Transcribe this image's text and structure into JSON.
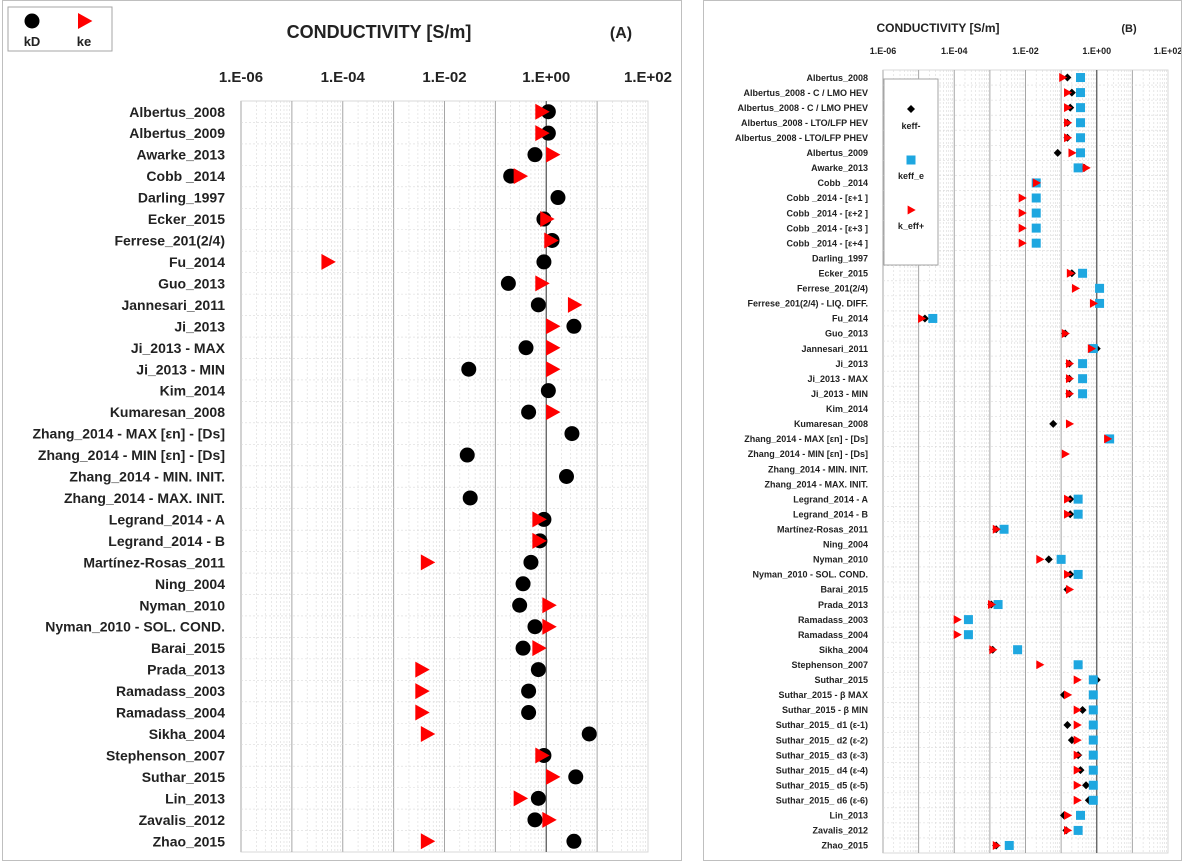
{
  "chart_data": [
    {
      "type": "scatter",
      "title": "CONDUCTIVITY [S/m]",
      "panel_label": "(A)",
      "x_scale": "log",
      "xlim": [
        1e-06,
        100
      ],
      "x_ticks": [
        "1.E-06",
        "1.E-04",
        "1.E-02",
        "1.E+00",
        "1.E+02"
      ],
      "grid": true,
      "legend_position": "top-left",
      "legend": [
        {
          "key": "kD",
          "label": "kD",
          "marker": "circle",
          "color": "#000000"
        },
        {
          "key": "ke",
          "label": "ke",
          "marker": "triangle",
          "color": "#ff0000"
        }
      ],
      "categories": [
        "Albertus_2008",
        "Albertus_2009",
        "Awarke_2013",
        "Cobb _2014",
        "Darling_1997",
        "Ecker_2015",
        "Ferrese_201(2/4)",
        "Fu_2014",
        "Guo_2013",
        "Jannesari_2011",
        "Ji_2013",
        "Ji_2013 - MAX",
        "Ji_2013 - MIN",
        "Kim_2014",
        "Kumaresan_2008",
        "Zhang_2014 - MAX [εn] - [Ds]",
        "Zhang_2014 - MIN [εn] - [Ds]",
        "Zhang_2014 - MIN. INIT.",
        "Zhang_2014 - MAX. INIT.",
        "Legrand_2014 - A",
        "Legrand_2014 - B",
        "Martínez-Rosas_2011",
        "Ning_2004",
        "Nyman_2010",
        "Nyman_2010 - SOL. COND.",
        "Barai_2015",
        "Prada_2013",
        "Ramadass_2003",
        "Ramadass_2004",
        "Sikha_2004",
        "Stephenson_2007",
        "Suthar_2015",
        "Lin_2013",
        "Zavalis_2012",
        "Zhao_2015"
      ],
      "series": [
        {
          "name": "kD",
          "values": [
            1.1,
            1.1,
            0.6,
            0.2,
            1.7,
            0.9,
            1.3,
            0.9,
            0.18,
            0.7,
            3.5,
            0.4,
            0.03,
            1.1,
            0.45,
            3.2,
            0.028,
            2.5,
            0.032,
            0.9,
            0.75,
            0.5,
            0.35,
            0.3,
            0.6,
            0.35,
            0.7,
            0.45,
            0.45,
            7.0,
            0.9,
            3.8,
            0.7,
            0.6,
            3.5
          ]
        },
        {
          "name": "ke",
          "values": [
            0.8,
            0.8,
            1.3,
            0.3,
            null,
            1.0,
            1.2,
            5e-05,
            0.8,
            3.5,
            1.3,
            1.3,
            1.3,
            null,
            1.3,
            null,
            null,
            null,
            null,
            0.7,
            0.7,
            0.0045,
            null,
            1.1,
            1.1,
            0.7,
            0.0035,
            0.0035,
            0.0035,
            0.0045,
            0.8,
            1.3,
            0.3,
            1.1,
            0.0045
          ]
        }
      ]
    },
    {
      "type": "scatter",
      "title": "CONDUCTIVITY [S/m]",
      "panel_label": "(B)",
      "x_scale": "log",
      "xlim": [
        1e-06,
        100
      ],
      "x_ticks": [
        "1.E-06",
        "1.E-04",
        "1.E-02",
        "1.E+00",
        "1.E+02"
      ],
      "grid": true,
      "legend_position": "top-left",
      "legend": [
        {
          "key": "kneg",
          "label": "keff-",
          "marker": "diamond",
          "color": "#000000"
        },
        {
          "key": "keffe",
          "label": "keff_e",
          "marker": "square",
          "color": "#1ea7e0"
        },
        {
          "key": "kpos",
          "label": "k_eff+",
          "marker": "triangle",
          "color": "#ff0000"
        }
      ],
      "categories": [
        "Albertus_2008",
        "Albertus_2008 - C / LMO HEV",
        "Albertus_2008 - C / LMO PHEV",
        "Albertus_2008 - LTO/LFP HEV",
        "Albertus_2008 - LTO/LFP PHEV",
        "Albertus_2009",
        "Awarke_2013",
        "Cobb _2014",
        "Cobb _2014 - [ε+1 ]",
        "Cobb _2014 - [ε+2 ]",
        "Cobb _2014 - [ε+3 ]",
        "Cobb _2014 - [ε+4 ]",
        "Darling_1997",
        "Ecker_2015",
        "Ferrese_201(2/4)",
        "Ferrese_201(2/4) - LIQ. DIFF.",
        "Fu_2014",
        "Guo_2013",
        "Jannesari_2011",
        "Ji_2013",
        "Ji_2013 - MAX",
        "Ji_2013 - MIN",
        "Kim_2014",
        "Kumaresan_2008",
        "Zhang_2014 - MAX [εn] - [Ds]",
        "Zhang_2014 - MIN [εn] - [Ds]",
        "Zhang_2014 - MIN. INIT.",
        "Zhang_2014 - MAX. INIT.",
        "Legrand_2014 - A",
        "Legrand_2014 - B",
        "Martínez-Rosas_2011",
        "Ning_2004",
        "Nyman_2010",
        "Nyman_2010 - SOL. COND.",
        "Barai_2015",
        "Prada_2013",
        "Ramadass_2003",
        "Ramadass_2004",
        "Sikha_2004",
        "Stephenson_2007",
        "Suthar_2015",
        "Suthar_2015 - β MAX",
        "Suthar_2015 - β MIN",
        "Suthar_2015_ d1 (ε-1)",
        "Suthar_2015_ d2 (ε-2)",
        "Suthar_2015_ d3 (ε-3)",
        "Suthar_2015_ d4 (ε-4)",
        "Suthar_2015_ d5 (ε-5)",
        "Suthar_2015_ d6 (ε-6)",
        "Lin_2013",
        "Zavalis_2012",
        "Zhao_2015"
      ],
      "series": [
        {
          "name": "keff-",
          "values": [
            0.15,
            0.2,
            0.18,
            0.15,
            0.15,
            0.08,
            0.45,
            null,
            null,
            null,
            null,
            null,
            null,
            0.2,
            null,
            null,
            1.5e-05,
            0.13,
            1.0,
            0.17,
            0.17,
            0.17,
            null,
            0.06,
            null,
            null,
            null,
            null,
            0.18,
            0.18,
            0.0015,
            null,
            0.045,
            0.18,
            0.15,
            0.0011,
            null,
            null,
            0.0012,
            null,
            1.0,
            0.12,
            0.4,
            0.15,
            0.2,
            0.3,
            0.35,
            0.5,
            0.6,
            0.12,
            0.14,
            0.0015
          ]
        },
        {
          "name": "keff_e",
          "values": [
            0.35,
            0.35,
            0.35,
            0.35,
            0.35,
            0.35,
            0.3,
            0.02,
            0.02,
            0.02,
            0.02,
            0.02,
            null,
            0.4,
            1.2,
            1.2,
            2.5e-05,
            null,
            0.8,
            0.4,
            0.4,
            0.4,
            null,
            null,
            2.3,
            null,
            null,
            null,
            0.3,
            0.3,
            0.0025,
            null,
            0.1,
            0.3,
            null,
            0.0017,
            0.00025,
            0.00025,
            0.006,
            0.3,
            0.8,
            0.8,
            0.8,
            0.8,
            0.8,
            0.8,
            0.8,
            0.8,
            0.8,
            0.35,
            0.3,
            0.0035
          ]
        },
        {
          "name": "k_eff+",
          "values": [
            0.11,
            0.15,
            0.15,
            0.15,
            0.15,
            0.2,
            0.5,
            0.02,
            0.008,
            0.008,
            0.008,
            0.008,
            null,
            0.18,
            0.25,
            0.8,
            1.2e-05,
            0.13,
            0.7,
            0.17,
            0.17,
            0.17,
            null,
            0.17,
            2.0,
            0.13,
            null,
            null,
            0.15,
            0.15,
            0.0015,
            null,
            0.025,
            0.15,
            0.17,
            0.0011,
            0.00012,
            0.00012,
            0.0012,
            0.025,
            0.28,
            0.15,
            0.28,
            0.28,
            0.28,
            0.28,
            0.28,
            0.28,
            0.28,
            0.15,
            0.15,
            0.0015
          ]
        }
      ]
    }
  ]
}
